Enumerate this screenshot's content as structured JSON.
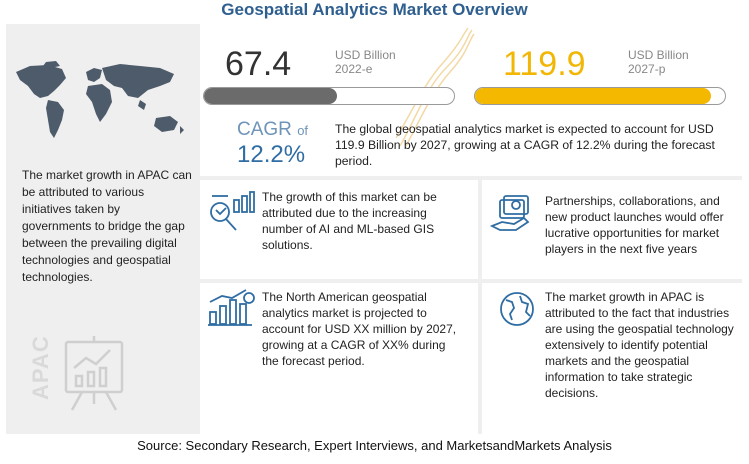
{
  "title": "Geospatial Analytics Market Overview",
  "left_panel": {
    "text": "The market growth in APAC can be attributed to various initiatives taken by governments to bridge the gap between the prevailing digital technologies and geospatial technologies.",
    "region_label": "APAC"
  },
  "chart_data": {
    "type": "bar",
    "categories": [
      "2022-e",
      "2027-p"
    ],
    "values": [
      67.4,
      119.9
    ],
    "unit": "USD Billion",
    "cagr": 12.2
  },
  "kpi": {
    "value_2022": "67.4",
    "unit_2022": "USD Billion",
    "year_2022": "2022-e",
    "value_2027": "119.9",
    "unit_2027": "USD Billion",
    "year_2027": "2027-p",
    "cagr_label": "CAGR",
    "cagr_of": "of",
    "cagr_value": "12.2%",
    "cagr_text": "The global geospatial analytics market is expected to account for USD 119.9 Billion by 2027, growing at a CAGR of 12.2% during the forecast period."
  },
  "insights": [
    {
      "icon": "analytics-icon",
      "text": "The growth of this market can be attributed due to the increasing number of AI and ML-based GIS solutions."
    },
    {
      "icon": "money-icon",
      "text": "Partnerships, collaborations, and new product launches would offer lucrative opportunities for market players in the next five years"
    },
    {
      "icon": "bar-growth-icon",
      "text": "The North American geospatial analytics market is projected to account for USD XX million by 2027, growing at a CAGR of XX% during the forecast period."
    },
    {
      "icon": "globe-icon",
      "text": "The market growth in APAC is attributed to the fact that industries are using the geospatial technology extensively to identify potential markets and the geospatial information to take strategic decisions."
    }
  ],
  "colors": {
    "title": "#2f5f8f",
    "bar_2022": "#6b6b6b",
    "bar_2027": "#f5b800",
    "cagr": "#2f6da3"
  },
  "source": "Source: Secondary Research, Expert Interviews, and MarketsandMarkets Analysis"
}
